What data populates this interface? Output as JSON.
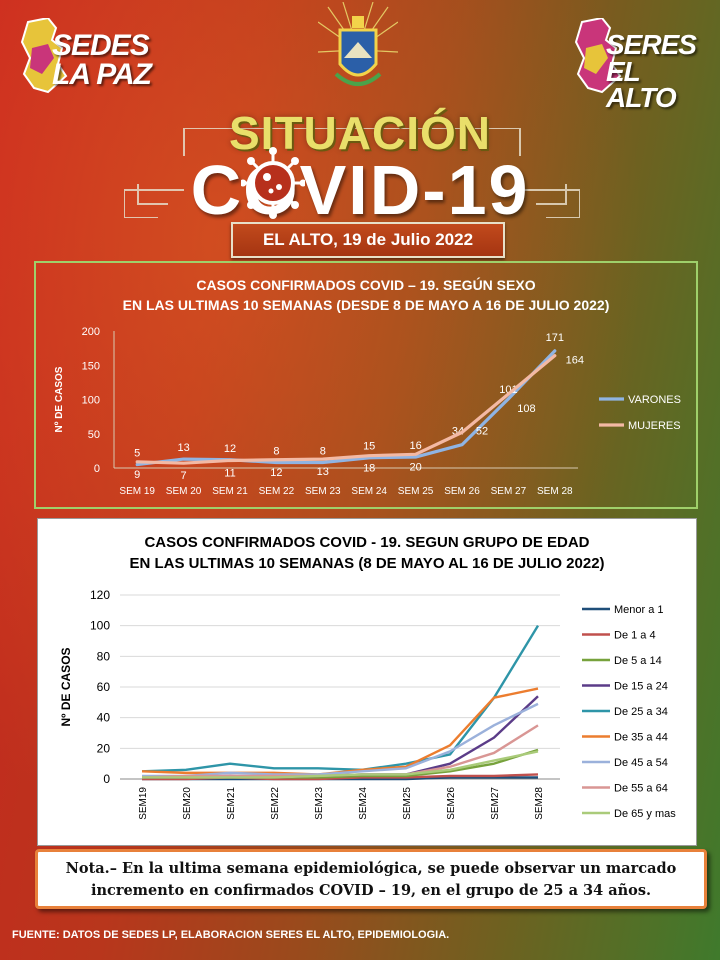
{
  "header": {
    "logo_left": "SEDES LA PAZ",
    "logo_right": "SERES EL ALTO",
    "title_line1": "SITUACIÓN",
    "title_line2": "COVID-19",
    "date": "EL ALTO, 19 de Julio 2022"
  },
  "chart_data": [
    {
      "type": "line",
      "title": "CASOS CONFIRMADOS COVID – 19. SEGÚN SEXO",
      "subtitle": "EN LAS ULTIMAS 10 SEMANAS (DESDE 8 DE MAYO A 16 DE JULIO 2022)",
      "ylabel": "Nº DE CASOS",
      "ylim": [
        0,
        200
      ],
      "yticks": [
        0,
        50,
        100,
        150,
        200
      ],
      "categories": [
        "SEM 19",
        "SEM 20",
        "SEM 21",
        "SEM 22",
        "SEM 23",
        "SEM 24",
        "SEM 25",
        "SEM 26",
        "SEM 27",
        "SEM 28"
      ],
      "legend_position": "right",
      "series": [
        {
          "name": "VARONES",
          "color": "#8fb4e3",
          "values": [
            5,
            13,
            12,
            8,
            8,
            15,
            16,
            34,
            101,
            171
          ]
        },
        {
          "name": "MUJERES",
          "color": "#f3b9a4",
          "values": [
            9,
            7,
            11,
            12,
            13,
            18,
            20,
            52,
            108,
            164
          ]
        }
      ]
    },
    {
      "type": "line",
      "title": "CASOS CONFIRMADOS COVID - 19. SEGUN GRUPO DE EDAD",
      "subtitle": "EN LAS ULTIMAS 10 SEMANAS (8 DE MAYO AL 16 DE JULIO 2022)",
      "ylabel": "Nº DE CASOS",
      "ylim": [
        0,
        120
      ],
      "yticks": [
        0,
        20,
        40,
        60,
        80,
        100,
        120
      ],
      "categories": [
        "SEM19",
        "SEM20",
        "SEM21",
        "SEM22",
        "SEM23",
        "SEM24",
        "SEM25",
        "SEM26",
        "SEM27",
        "SEM28"
      ],
      "legend_position": "right",
      "grid": "horizontal",
      "series": [
        {
          "name": "Menor a 1",
          "color": "#1f4e79",
          "values": [
            0,
            0,
            0,
            0,
            0,
            0,
            0,
            1,
            1,
            1
          ]
        },
        {
          "name": "De 1 a 4",
          "color": "#c0504d",
          "values": [
            0,
            0,
            1,
            0,
            0,
            1,
            1,
            2,
            2,
            3
          ]
        },
        {
          "name": "De 5 a 14",
          "color": "#77a23c",
          "values": [
            1,
            1,
            1,
            1,
            1,
            2,
            2,
            5,
            10,
            19
          ]
        },
        {
          "name": "De 15 a 24",
          "color": "#5b3c88",
          "values": [
            1,
            1,
            2,
            1,
            2,
            3,
            3,
            10,
            27,
            54
          ]
        },
        {
          "name": "De 25 a 34",
          "color": "#2e95a8",
          "values": [
            5,
            6,
            10,
            7,
            7,
            6,
            10,
            16,
            53,
            100
          ]
        },
        {
          "name": "De 35 a 44",
          "color": "#ec7d2f",
          "values": [
            5,
            4,
            4,
            4,
            3,
            6,
            8,
            22,
            53,
            59
          ]
        },
        {
          "name": "De 45 a 54",
          "color": "#9bb1db",
          "values": [
            2,
            2,
            4,
            3,
            3,
            5,
            7,
            18,
            35,
            49
          ]
        },
        {
          "name": "De 55 a 64",
          "color": "#d99694",
          "values": [
            1,
            2,
            2,
            2,
            2,
            3,
            3,
            8,
            17,
            35
          ]
        },
        {
          "name": "De 65 y mas",
          "color": "#aacb7a",
          "values": [
            1,
            1,
            1,
            1,
            2,
            3,
            3,
            6,
            12,
            18
          ]
        }
      ]
    }
  ],
  "nota": {
    "line1": "Nota.– En la ultima semana epidemiológica, se puede observar un marcado",
    "line2": "incremento en confirmados COVID – 19, en el grupo de 25 a 34 años."
  },
  "footer": "FUENTE: DATOS DE SEDES LP, ELABORACION SERES EL ALTO, EPIDEMIOLOGIA."
}
